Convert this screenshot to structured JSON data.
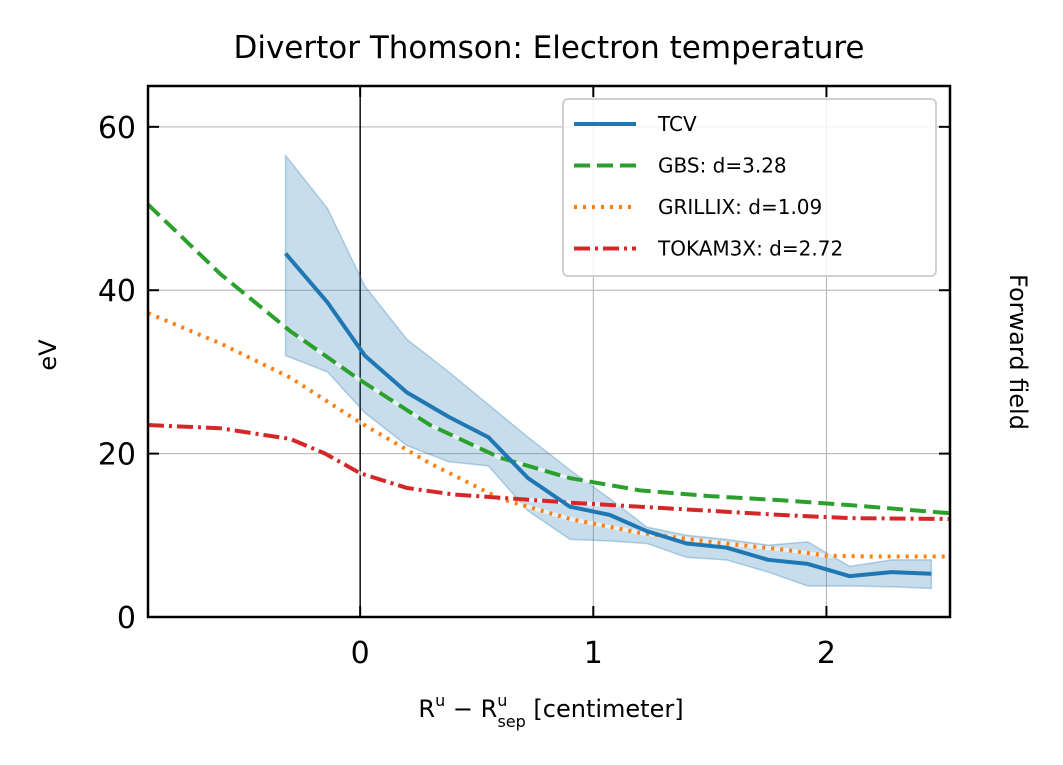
{
  "chart_data": {
    "type": "line",
    "title": "Divertor Thomson: Electron temperature",
    "xlabel": {
      "base": "R",
      "sup1": "u",
      "minus": " − ",
      "sub": "sep",
      "sup2": "u",
      "unit": " [centimeter]"
    },
    "ylabel": "eV",
    "side_label": "Forward field",
    "xlim": [
      -0.91,
      2.53
    ],
    "ylim": [
      0,
      65
    ],
    "xticks": [
      0,
      1,
      2
    ],
    "yticks": [
      0,
      20,
      40,
      60
    ],
    "xtick_labels": [
      "0",
      "1",
      "2"
    ],
    "ytick_labels": [
      "0",
      "20",
      "40",
      "60"
    ],
    "grid": true,
    "vline_x": 0,
    "legend_position": "upper right",
    "band": {
      "name": "TCV",
      "color": "#1f77b4",
      "x": [
        -0.32,
        -0.14,
        0.02,
        0.2,
        0.38,
        0.55,
        0.72,
        0.9,
        1.07,
        1.23,
        1.4,
        1.57,
        1.75,
        1.92,
        2.1,
        2.28,
        2.45
      ],
      "upper": [
        56.5,
        50,
        40.5,
        34,
        30,
        26,
        22,
        18,
        14.5,
        11,
        10,
        9.5,
        8.8,
        9.2,
        6.2,
        7,
        7
      ],
      "lower": [
        32,
        30,
        25,
        21,
        19,
        18.5,
        13,
        9.5,
        9.3,
        9,
        7.3,
        7,
        5.5,
        3.8,
        3.8,
        3.7,
        3.5
      ]
    },
    "series": [
      {
        "name": "TCV",
        "label": "TCV",
        "color": "#1f77b4",
        "dash": "",
        "x": [
          -0.32,
          -0.14,
          0.02,
          0.2,
          0.38,
          0.55,
          0.72,
          0.9,
          1.07,
          1.23,
          1.4,
          1.57,
          1.75,
          1.92,
          2.1,
          2.28,
          2.45
        ],
        "values": [
          44.5,
          38.5,
          32,
          27.5,
          24.5,
          22,
          17,
          13.5,
          12.5,
          10.5,
          9,
          8.5,
          7,
          6.5,
          5,
          5.5,
          5.3
        ]
      },
      {
        "name": "GBS",
        "label": "GBS: d=3.28",
        "color": "#2ca02c",
        "dash": "16 7",
        "x": [
          -0.91,
          -0.6,
          -0.3,
          0,
          0.3,
          0.6,
          0.9,
          1.2,
          1.5,
          1.8,
          2.1,
          2.4,
          2.53
        ],
        "values": [
          50.5,
          42,
          35,
          29,
          23.5,
          19.5,
          17,
          15.5,
          14.8,
          14.3,
          13.7,
          13,
          12.7
        ]
      },
      {
        "name": "GRILLIX",
        "label": "GRILLIX: d=1.09",
        "color": "#ff7f0e",
        "dash": "3 6",
        "x": [
          -0.91,
          -0.6,
          -0.3,
          0,
          0.3,
          0.6,
          0.9,
          1.2,
          1.5,
          1.8,
          2.0,
          2.2,
          2.53
        ],
        "values": [
          37.2,
          33.5,
          29.3,
          23.8,
          18.8,
          14.5,
          12,
          10.3,
          9.2,
          8.3,
          7.5,
          7.4,
          7.4
        ]
      },
      {
        "name": "TOKAM3X",
        "label": "TOKAM3X: d=2.72",
        "color": "#d62728",
        "dash": "16 5 3 5",
        "x": [
          -0.91,
          -0.6,
          -0.3,
          -0.15,
          0,
          0.2,
          0.4,
          0.6,
          0.9,
          1.2,
          1.5,
          1.8,
          2.1,
          2.53
        ],
        "values": [
          23.5,
          23.1,
          21.8,
          20,
          17.6,
          15.8,
          15,
          14.6,
          14,
          13.5,
          13,
          12.5,
          12.1,
          12
        ]
      }
    ]
  }
}
